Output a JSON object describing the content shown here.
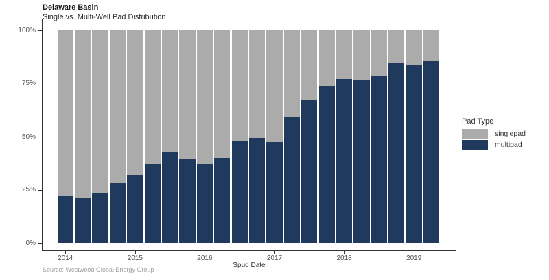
{
  "header": {
    "title": "Delaware Basin",
    "subtitle": "Single vs. Multi-Well Pad Distribution"
  },
  "source": "Source: Westwood Global Energy Group",
  "legend": {
    "title": "Pad Type",
    "items": [
      {
        "label": "singlepad",
        "color": "#ABABAB"
      },
      {
        "label": "multipad",
        "color": "#1F3A5C"
      }
    ]
  },
  "colors": {
    "singlepad": "#ABABAB",
    "multipad": "#1F3A5C",
    "axis": "#333333",
    "tick_text": "#4d4d4d"
  },
  "chart_data": {
    "type": "bar",
    "stacked": true,
    "percent": true,
    "title": "Delaware Basin",
    "subtitle": "Single vs. Multi-Well Pad Distribution",
    "xlabel": "Spud Date",
    "ylabel": "",
    "ylim": [
      0,
      100
    ],
    "grid": false,
    "legend_position": "right",
    "y_ticks": [
      {
        "value": 0,
        "label": "0%"
      },
      {
        "value": 25,
        "label": "25%"
      },
      {
        "value": 50,
        "label": "50%"
      },
      {
        "value": 75,
        "label": "75%"
      },
      {
        "value": 100,
        "label": "100%"
      }
    ],
    "x_year_ticks": [
      "2014",
      "2015",
      "2016",
      "2017",
      "2018",
      "2019"
    ],
    "categories": [
      "2014 Q1",
      "2014 Q2",
      "2014 Q3",
      "2014 Q4",
      "2015 Q1",
      "2015 Q2",
      "2015 Q3",
      "2015 Q4",
      "2016 Q1",
      "2016 Q2",
      "2016 Q3",
      "2016 Q4",
      "2017 Q1",
      "2017 Q2",
      "2017 Q3",
      "2017 Q4",
      "2018 Q1",
      "2018 Q2",
      "2018 Q3",
      "2018 Q4",
      "2019 Q1",
      "2019 Q2"
    ],
    "series": [
      {
        "name": "multipad",
        "color": "#1F3A5C",
        "values": [
          22,
          21,
          23.5,
          28,
          32,
          37,
          43,
          39.5,
          37,
          40,
          48,
          49.5,
          47.5,
          59.5,
          67,
          74,
          77,
          76.5,
          78.5,
          84.5,
          83.5,
          85.5
        ]
      },
      {
        "name": "singlepad",
        "color": "#ABABAB",
        "values": [
          78,
          79,
          76.5,
          72,
          68,
          63,
          57,
          60.5,
          63,
          60,
          52,
          50.5,
          52.5,
          40.5,
          33,
          26,
          23,
          23.5,
          21.5,
          15.5,
          16.5,
          14.5
        ]
      }
    ]
  }
}
